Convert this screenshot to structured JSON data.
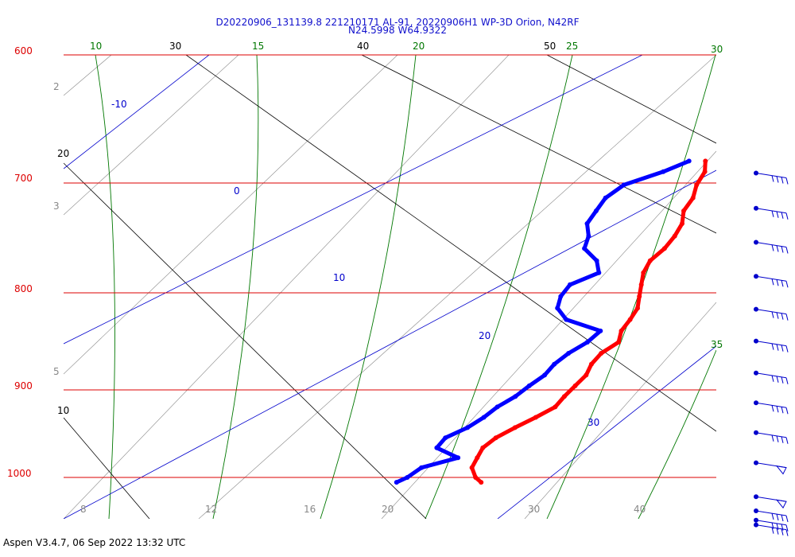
{
  "header": {
    "line1": "D20220906_131139.8 221210171 AL-91, 20220906H1 WP-3D Orion, N42RF",
    "line2": "N24.5998 W64.9322"
  },
  "footer": {
    "text": "Aspen V3.4.7, 06 Sep 2022  13:32 UTC"
  },
  "colors": {
    "isobar": "#dd0000",
    "isotherm": "#0000cc",
    "dry_adiabat": "#000000",
    "moist_adiabat": "#007700",
    "mixing_ratio": "#888888",
    "temperature": "#ff0000",
    "dewpoint": "#0000ff",
    "wind_barb": "#0000cc"
  },
  "chart_data": {
    "type": "skew-t",
    "pressure_levels": [
      "600",
      "700",
      "800",
      "900",
      "1000"
    ],
    "isotherm_labels": [
      "-10",
      "0",
      "10",
      "20",
      "30"
    ],
    "dry_adiabat_labels": [
      "30",
      "40",
      "50",
      "20",
      "10"
    ],
    "moist_adiabat_labels": [
      "10",
      "15",
      "20",
      "25",
      "30",
      "35"
    ],
    "mixing_ratio_labels_left": [
      "2",
      "3",
      "5"
    ],
    "mixing_ratio_labels_bottom": [
      "8",
      "12",
      "16",
      "20",
      "30",
      "40"
    ],
    "profile_pressure_hpa": [
      1005,
      1000,
      990,
      980,
      970,
      960,
      950,
      940,
      930,
      920,
      910,
      900,
      890,
      880,
      870,
      860,
      850,
      840,
      830,
      820,
      810,
      800,
      790,
      780,
      770,
      760,
      750,
      740,
      730,
      722
    ],
    "temperature_c": [
      26.7,
      25.9,
      24.8,
      24.3,
      23.8,
      23.8,
      24.2,
      24.7,
      25.1,
      24.8,
      24.6,
      24.4,
      23.8,
      23.5,
      23.7,
      22.9,
      22.5,
      22.0,
      21.1,
      20.2,
      19.3,
      18.7,
      18.6,
      18.2,
      17.6,
      16.6,
      16.1,
      15.2,
      14.6,
      13.7
    ],
    "dewpoint_c": [
      21.0,
      21.3,
      21.4,
      23.0,
      20.7,
      20.4,
      21.0,
      21.2,
      21.2,
      21.5,
      21.5,
      21.6,
      21.3,
      21.3,
      21.6,
      21.5,
      18.2,
      16.6,
      15.8,
      15.4,
      16.3,
      15.1,
      13.2,
      12.4,
      11.2,
      10.7,
      10.2,
      10.3,
      11.8,
      12.6
    ],
    "wind_barb_pressure_hpa": [
      731,
      758,
      785,
      813,
      841,
      869,
      898,
      926,
      955,
      985,
      1020,
      1035,
      1045,
      1050
    ]
  }
}
